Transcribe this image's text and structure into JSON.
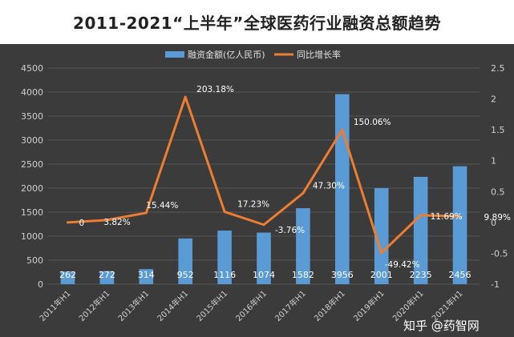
{
  "chart_data": {
    "type": "bar+line",
    "title": "2011-2021“上半年”全球医药行业融资总额趋势",
    "categories": [
      "2011年H1",
      "2012年H1",
      "2013年H1",
      "2014年H1",
      "2015年H1",
      "2016年H1",
      "2017年H1",
      "2018年H1",
      "2019年H1",
      "2020年H1",
      "2021年H1"
    ],
    "series": [
      {
        "name": "融资金额(亿人民币)",
        "type": "bar",
        "axis": "left",
        "color": "#5b9bd5",
        "values": [
          262,
          272,
          314,
          952,
          1116,
          1074,
          1582,
          3956,
          2001,
          2235,
          2456
        ],
        "labels": [
          "262",
          "272",
          "314",
          "952",
          "1116",
          "1074",
          "1582",
          "3956",
          "2001",
          "2235",
          "2456"
        ]
      },
      {
        "name": "同比增长率",
        "type": "line",
        "axis": "right",
        "color": "#ed7d31",
        "values": [
          0,
          0.0382,
          0.1544,
          2.0318,
          0.1723,
          -0.0376,
          0.473,
          1.5006,
          -0.4942,
          0.1169,
          0.0989
        ],
        "labels": [
          "0",
          "3.82%",
          "15.44%",
          "203.18%",
          "17.23%",
          "-3.76%",
          "47.30%",
          "150.06%",
          "-49.42%",
          "11.69%",
          "9.89%"
        ]
      }
    ],
    "y_left": {
      "min": 0,
      "max": 4500,
      "ticks": [
        "0",
        "500",
        "1000",
        "1500",
        "2000",
        "2500",
        "3000",
        "3500",
        "4000",
        "4500"
      ]
    },
    "y_right": {
      "min": -1,
      "max": 2.5,
      "ticks": [
        "-1",
        "-0.5",
        "0",
        "0.5",
        "1",
        "1.5",
        "2",
        "2.5"
      ]
    },
    "legend": "top-center",
    "grid": true
  },
  "watermark": "知乎 @药智网"
}
